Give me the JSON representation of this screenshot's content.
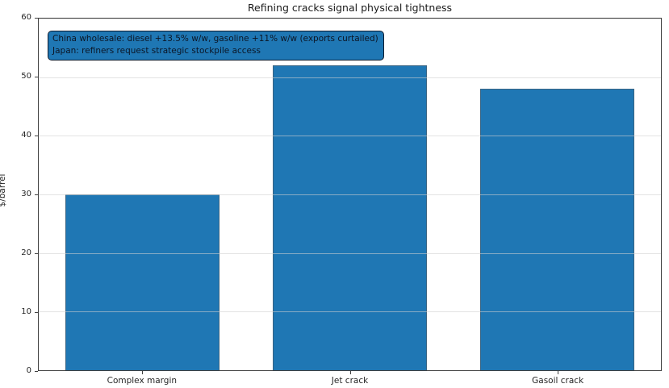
{
  "chart_data": {
    "type": "bar",
    "title": "Refining cracks signal physical tightness",
    "categories": [
      "Complex margin",
      "Jet crack",
      "Gasoil crack"
    ],
    "values": [
      30,
      52,
      48
    ],
    "xlabel": "",
    "ylabel": "$/barrel",
    "ylim": [
      0,
      60
    ],
    "yticks": [
      0,
      10,
      20,
      30,
      40,
      50,
      60
    ],
    "grid": "horizontal-light",
    "legend": "none",
    "bar_color": "#1f77b4",
    "annotations": [
      "China wholesale: diesel +13.5% w/w, gasoline +11% w/w (exports curtailed)",
      "Japan: refiners request strategic stockpile access"
    ],
    "annotation_box": {
      "fill": "#1f77b4",
      "border_color": "#0d1b2e",
      "text_color": "#0b1626",
      "position": "top-left"
    }
  }
}
